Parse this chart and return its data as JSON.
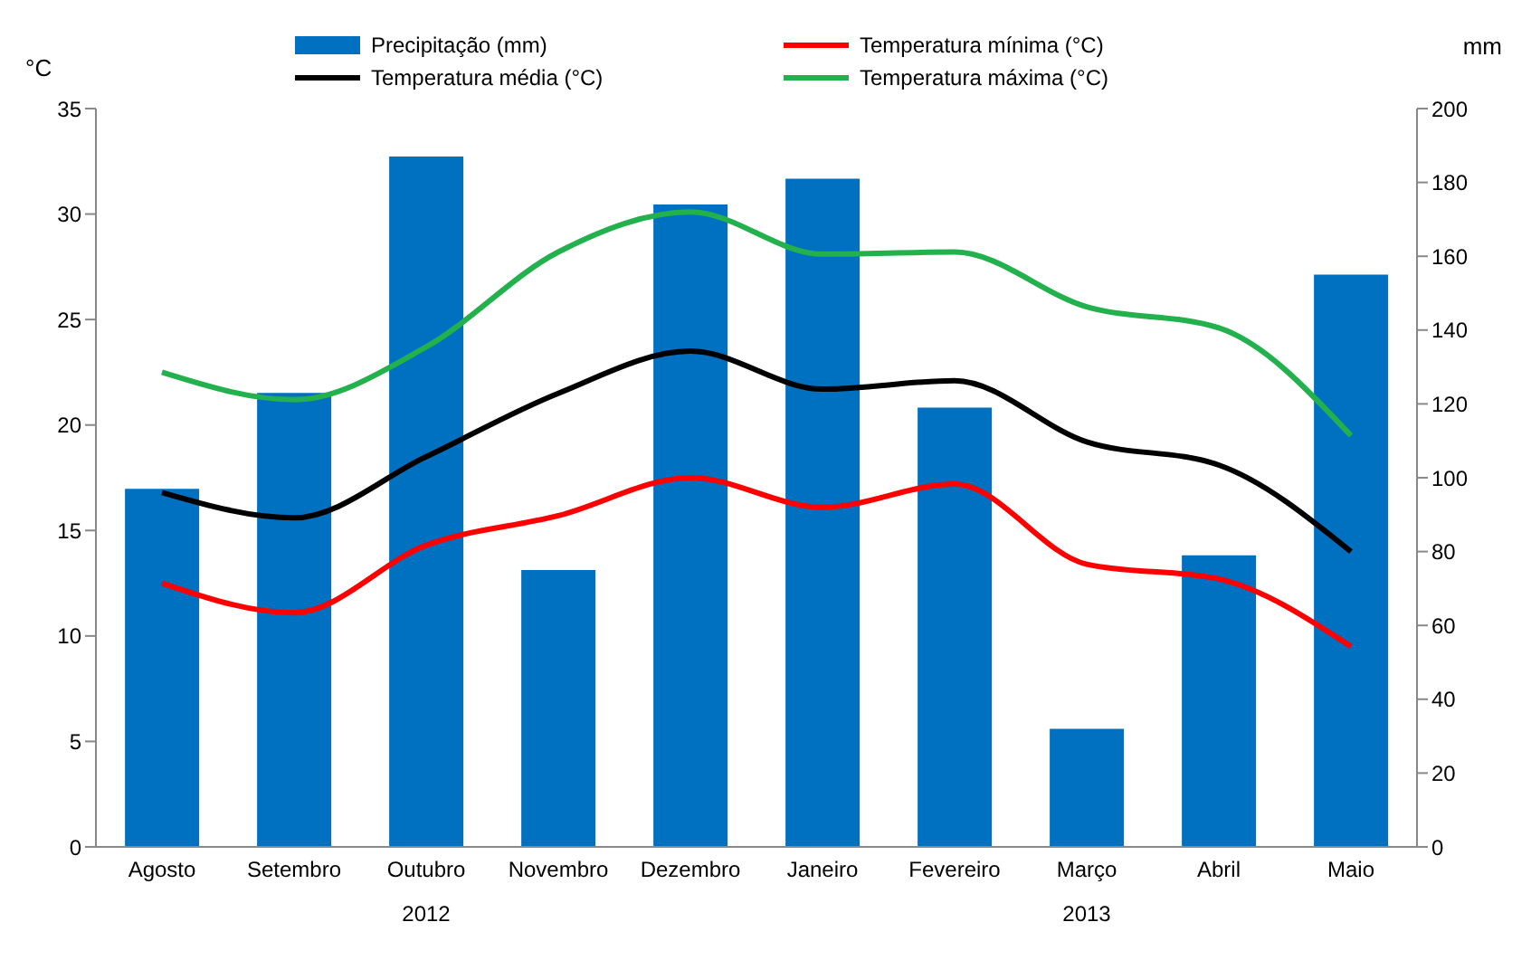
{
  "chart_data": {
    "type": "line",
    "ylabel": "°C",
    "y2label": "mm",
    "categories": [
      "Agosto",
      "Setembro",
      "Outubro",
      "Novembro",
      "Dezembro",
      "Janeiro",
      "Fevereiro",
      "Março",
      "Abril",
      "Maio"
    ],
    "series": [
      {
        "name": "Precipitação (mm)",
        "type": "bar",
        "axis": "y2",
        "color": "#0070c0",
        "values": [
          97,
          123,
          187,
          75,
          174,
          181,
          119,
          32,
          79,
          155
        ]
      },
      {
        "name": "Temperatura mínima (°C)",
        "color": "#ff0000",
        "values": [
          12.5,
          11.1,
          14.3,
          15.7,
          17.5,
          16.1,
          17.2,
          13.4,
          12.7,
          9.5
        ]
      },
      {
        "name": "Temperatura média (°C)",
        "color": "#000000",
        "values": [
          16.8,
          15.6,
          18.5,
          21.5,
          23.5,
          21.7,
          22.1,
          19.2,
          18.1,
          14.0
        ]
      },
      {
        "name": "Temperatura máxima (°C)",
        "color": "#22b14c",
        "values": [
          22.5,
          21.2,
          23.7,
          28.2,
          30.1,
          28.1,
          28.2,
          25.6,
          24.6,
          19.5
        ]
      }
    ],
    "ylim": [
      0,
      35
    ],
    "yticks": [
      0,
      5,
      10,
      15,
      20,
      25,
      30,
      35
    ],
    "y2lim": [
      0,
      200
    ],
    "y2ticks": [
      0,
      20,
      40,
      60,
      80,
      100,
      120,
      140,
      160,
      180,
      200
    ],
    "legend": "top",
    "marker": "none",
    "line_style": "solid",
    "annotations": [
      "2012",
      "2013"
    ]
  }
}
